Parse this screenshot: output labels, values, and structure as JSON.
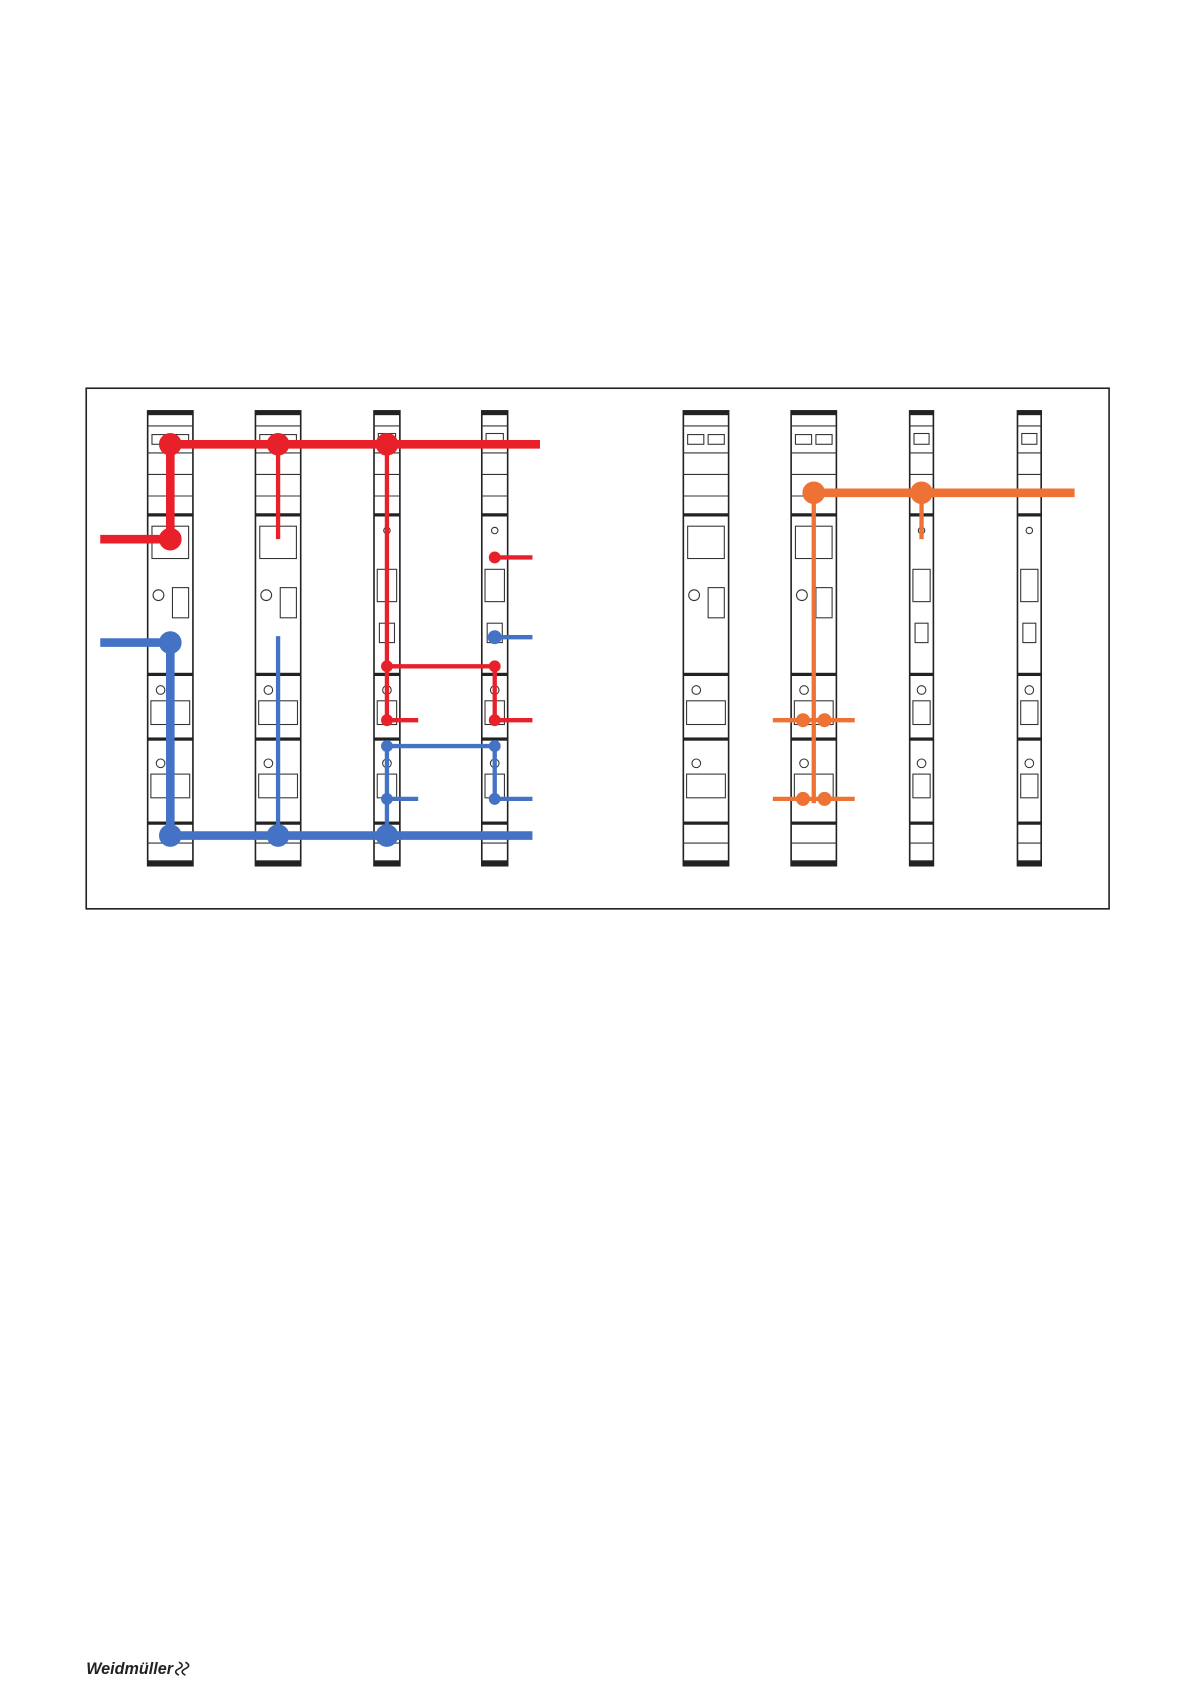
{
  "footer": {
    "logo": "Weidmüller"
  }
}
